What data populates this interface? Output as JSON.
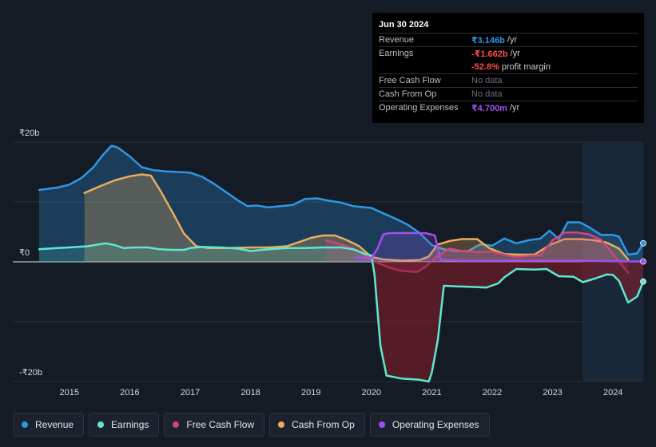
{
  "colors": {
    "revenue": "#2e97e4",
    "earnings": "#5ee8d0",
    "fcf": "#d1457a",
    "cfo": "#e8ae5e",
    "opex": "#a24df0",
    "negative_value": "#ff4d4d",
    "muted": "#6a6f77"
  },
  "tooltip": {
    "date": "Jun 30 2024",
    "rows": [
      {
        "label": "Revenue",
        "value": "₹3.146b",
        "unit": "/yr",
        "color": "#2e97e4"
      },
      {
        "label": "Earnings",
        "value": "-₹1.662b",
        "unit": "/yr",
        "color": "#ff4d4d"
      },
      {
        "label": "",
        "value": "-52.8%",
        "unit": "profit margin",
        "color": "#ff4d4d"
      },
      {
        "label": "Free Cash Flow",
        "value": "No data",
        "unit": "",
        "color": "#6a6f77"
      },
      {
        "label": "Cash From Op",
        "value": "No data",
        "unit": "",
        "color": "#6a6f77"
      },
      {
        "label": "Operating Expenses",
        "value": "₹4.700m",
        "unit": "/yr",
        "color": "#a24df0"
      }
    ]
  },
  "legend": [
    {
      "label": "Revenue",
      "color": "#2e97e4"
    },
    {
      "label": "Earnings",
      "color": "#5ee8d0"
    },
    {
      "label": "Free Cash Flow",
      "color": "#d1457a"
    },
    {
      "label": "Cash From Op",
      "color": "#e8ae5e"
    },
    {
      "label": "Operating Expenses",
      "color": "#a24df0"
    }
  ],
  "chart_data": {
    "type": "area",
    "y_unit": "₹ billions",
    "ylim": [
      -20,
      20
    ],
    "ytick_labels": [
      {
        "value": 20,
        "label": "₹20b"
      },
      {
        "value": 0,
        "label": "₹0"
      },
      {
        "value": -20,
        "label": "-₹20b"
      }
    ],
    "xlim": [
      2014.5,
      2024.5
    ],
    "xticks": [
      2015,
      2016,
      2017,
      2018,
      2019,
      2020,
      2021,
      2022,
      2023,
      2024
    ],
    "forecast_shade_from": 2023.5,
    "series": [
      {
        "name": "Revenue",
        "key": "revenue",
        "points": [
          [
            2014.5,
            12.0
          ],
          [
            2014.8,
            12.4
          ],
          [
            2015.0,
            12.9
          ],
          [
            2015.2,
            14.0
          ],
          [
            2015.4,
            15.8
          ],
          [
            2015.55,
            17.8
          ],
          [
            2015.7,
            19.4
          ],
          [
            2015.8,
            19.1
          ],
          [
            2016.0,
            17.6
          ],
          [
            2016.2,
            15.8
          ],
          [
            2016.4,
            15.3
          ],
          [
            2016.6,
            15.1
          ],
          [
            2016.8,
            15.0
          ],
          [
            2017.0,
            14.9
          ],
          [
            2017.2,
            14.2
          ],
          [
            2017.4,
            13.0
          ],
          [
            2017.6,
            11.6
          ],
          [
            2017.8,
            10.2
          ],
          [
            2017.95,
            9.3
          ],
          [
            2018.1,
            9.4
          ],
          [
            2018.3,
            9.1
          ],
          [
            2018.5,
            9.3
          ],
          [
            2018.7,
            9.5
          ],
          [
            2018.9,
            10.5
          ],
          [
            2019.1,
            10.6
          ],
          [
            2019.3,
            10.2
          ],
          [
            2019.5,
            9.9
          ],
          [
            2019.7,
            9.3
          ],
          [
            2019.9,
            9.1
          ],
          [
            2020.0,
            9.0
          ],
          [
            2020.2,
            8.1
          ],
          [
            2020.4,
            7.2
          ],
          [
            2020.6,
            6.2
          ],
          [
            2020.8,
            4.8
          ],
          [
            2021.0,
            2.8
          ],
          [
            2021.2,
            2.1
          ],
          [
            2021.4,
            1.8
          ],
          [
            2021.6,
            1.8
          ],
          [
            2021.8,
            2.9
          ],
          [
            2022.0,
            2.7
          ],
          [
            2022.2,
            3.9
          ],
          [
            2022.4,
            3.1
          ],
          [
            2022.6,
            3.6
          ],
          [
            2022.8,
            3.9
          ],
          [
            2022.95,
            5.2
          ],
          [
            2023.1,
            3.8
          ],
          [
            2023.25,
            6.6
          ],
          [
            2023.45,
            6.6
          ],
          [
            2023.6,
            5.8
          ],
          [
            2023.8,
            4.5
          ],
          [
            2024.0,
            4.5
          ],
          [
            2024.1,
            4.2
          ],
          [
            2024.25,
            1.2
          ],
          [
            2024.4,
            1.4
          ],
          [
            2024.5,
            3.1
          ]
        ],
        "fill": true
      },
      {
        "name": "Earnings",
        "key": "earnings",
        "points": [
          [
            2014.5,
            2.1
          ],
          [
            2014.8,
            2.3
          ],
          [
            2015.0,
            2.4
          ],
          [
            2015.3,
            2.6
          ],
          [
            2015.6,
            3.1
          ],
          [
            2015.75,
            2.8
          ],
          [
            2015.9,
            2.3
          ],
          [
            2016.1,
            2.4
          ],
          [
            2016.3,
            2.4
          ],
          [
            2016.5,
            2.1
          ],
          [
            2016.7,
            2.0
          ],
          [
            2016.9,
            2.0
          ],
          [
            2017.0,
            2.3
          ],
          [
            2017.2,
            2.5
          ],
          [
            2017.5,
            2.4
          ],
          [
            2017.8,
            2.2
          ],
          [
            2018.0,
            1.8
          ],
          [
            2018.3,
            2.1
          ],
          [
            2018.6,
            2.3
          ],
          [
            2018.9,
            2.3
          ],
          [
            2019.2,
            2.4
          ],
          [
            2019.5,
            2.4
          ],
          [
            2019.7,
            2.1
          ],
          [
            2019.9,
            1.3
          ],
          [
            2020.0,
            1.1
          ],
          [
            2020.05,
            -2.0
          ],
          [
            2020.15,
            -14.0
          ],
          [
            2020.25,
            -19.0
          ],
          [
            2020.5,
            -19.5
          ],
          [
            2020.8,
            -19.7
          ],
          [
            2020.95,
            -20.0
          ],
          [
            2021.0,
            -18.5
          ],
          [
            2021.1,
            -13.0
          ],
          [
            2021.2,
            -4.0
          ],
          [
            2021.4,
            -4.1
          ],
          [
            2021.7,
            -4.2
          ],
          [
            2021.9,
            -4.3
          ],
          [
            2022.1,
            -3.6
          ],
          [
            2022.2,
            -2.6
          ],
          [
            2022.4,
            -1.2
          ],
          [
            2022.7,
            -1.3
          ],
          [
            2022.9,
            -1.2
          ],
          [
            2023.1,
            -2.4
          ],
          [
            2023.35,
            -2.5
          ],
          [
            2023.5,
            -3.4
          ],
          [
            2023.7,
            -2.8
          ],
          [
            2023.9,
            -2.1
          ],
          [
            2024.0,
            -2.2
          ],
          [
            2024.1,
            -3.2
          ],
          [
            2024.25,
            -6.8
          ],
          [
            2024.4,
            -5.8
          ],
          [
            2024.5,
            -3.3
          ]
        ],
        "fill": true
      },
      {
        "name": "Free Cash Flow",
        "key": "fcf",
        "points": [
          [
            2019.25,
            3.6
          ],
          [
            2019.5,
            2.9
          ],
          [
            2019.75,
            2.0
          ],
          [
            2020.0,
            0.3
          ],
          [
            2020.3,
            -1.0
          ],
          [
            2020.5,
            -1.5
          ],
          [
            2020.75,
            -1.7
          ],
          [
            2020.9,
            -0.8
          ],
          [
            2021.1,
            1.0
          ],
          [
            2021.3,
            2.2
          ],
          [
            2021.5,
            1.8
          ],
          [
            2021.8,
            1.6
          ],
          [
            2022.0,
            1.7
          ],
          [
            2022.2,
            1.2
          ],
          [
            2022.4,
            0.8
          ],
          [
            2022.6,
            1.0
          ],
          [
            2022.8,
            1.1
          ],
          [
            2023.0,
            3.6
          ],
          [
            2023.2,
            4.9
          ],
          [
            2023.4,
            4.9
          ],
          [
            2023.6,
            4.6
          ],
          [
            2023.8,
            3.7
          ],
          [
            2024.0,
            1.3
          ],
          [
            2024.1,
            0.0
          ],
          [
            2024.25,
            -1.8
          ]
        ],
        "fill": true
      },
      {
        "name": "Cash From Op",
        "key": "cfo",
        "points": [
          [
            2015.25,
            11.5
          ],
          [
            2015.5,
            12.6
          ],
          [
            2015.75,
            13.6
          ],
          [
            2016.0,
            14.3
          ],
          [
            2016.2,
            14.6
          ],
          [
            2016.35,
            14.4
          ],
          [
            2016.5,
            12.0
          ],
          [
            2016.7,
            8.4
          ],
          [
            2016.9,
            4.7
          ],
          [
            2017.1,
            2.6
          ],
          [
            2017.3,
            2.3
          ],
          [
            2017.6,
            2.3
          ],
          [
            2018.0,
            2.4
          ],
          [
            2018.3,
            2.4
          ],
          [
            2018.6,
            2.6
          ],
          [
            2018.8,
            3.3
          ],
          [
            2019.0,
            4.0
          ],
          [
            2019.2,
            4.4
          ],
          [
            2019.4,
            4.4
          ],
          [
            2019.6,
            3.6
          ],
          [
            2019.8,
            2.6
          ],
          [
            2020.0,
            0.8
          ],
          [
            2020.2,
            0.4
          ],
          [
            2020.5,
            0.2
          ],
          [
            2020.8,
            0.3
          ],
          [
            2020.95,
            0.9
          ],
          [
            2021.1,
            2.9
          ],
          [
            2021.3,
            3.5
          ],
          [
            2021.5,
            3.8
          ],
          [
            2021.75,
            3.8
          ],
          [
            2021.95,
            2.3
          ],
          [
            2022.2,
            1.3
          ],
          [
            2022.45,
            1.2
          ],
          [
            2022.7,
            1.2
          ],
          [
            2022.95,
            2.8
          ],
          [
            2023.2,
            3.8
          ],
          [
            2023.45,
            3.8
          ],
          [
            2023.7,
            3.6
          ],
          [
            2023.9,
            3.2
          ],
          [
            2024.1,
            2.2
          ],
          [
            2024.25,
            0.4
          ]
        ],
        "fill": true
      },
      {
        "name": "Operating Expenses",
        "key": "opex",
        "points": [
          [
            2019.75,
            0.8
          ],
          [
            2019.95,
            0.5
          ],
          [
            2020.0,
            0.6
          ],
          [
            2020.1,
            2.2
          ],
          [
            2020.2,
            4.6
          ],
          [
            2020.3,
            4.8
          ],
          [
            2020.6,
            4.8
          ],
          [
            2020.9,
            4.8
          ],
          [
            2021.05,
            4.4
          ],
          [
            2021.15,
            0.3
          ],
          [
            2021.5,
            0.2
          ],
          [
            2022.0,
            0.2
          ],
          [
            2022.5,
            0.2
          ],
          [
            2023.0,
            0.2
          ],
          [
            2023.5,
            0.2
          ],
          [
            2024.0,
            0.1
          ],
          [
            2024.5,
            0.05
          ]
        ],
        "fill": true
      }
    ]
  }
}
